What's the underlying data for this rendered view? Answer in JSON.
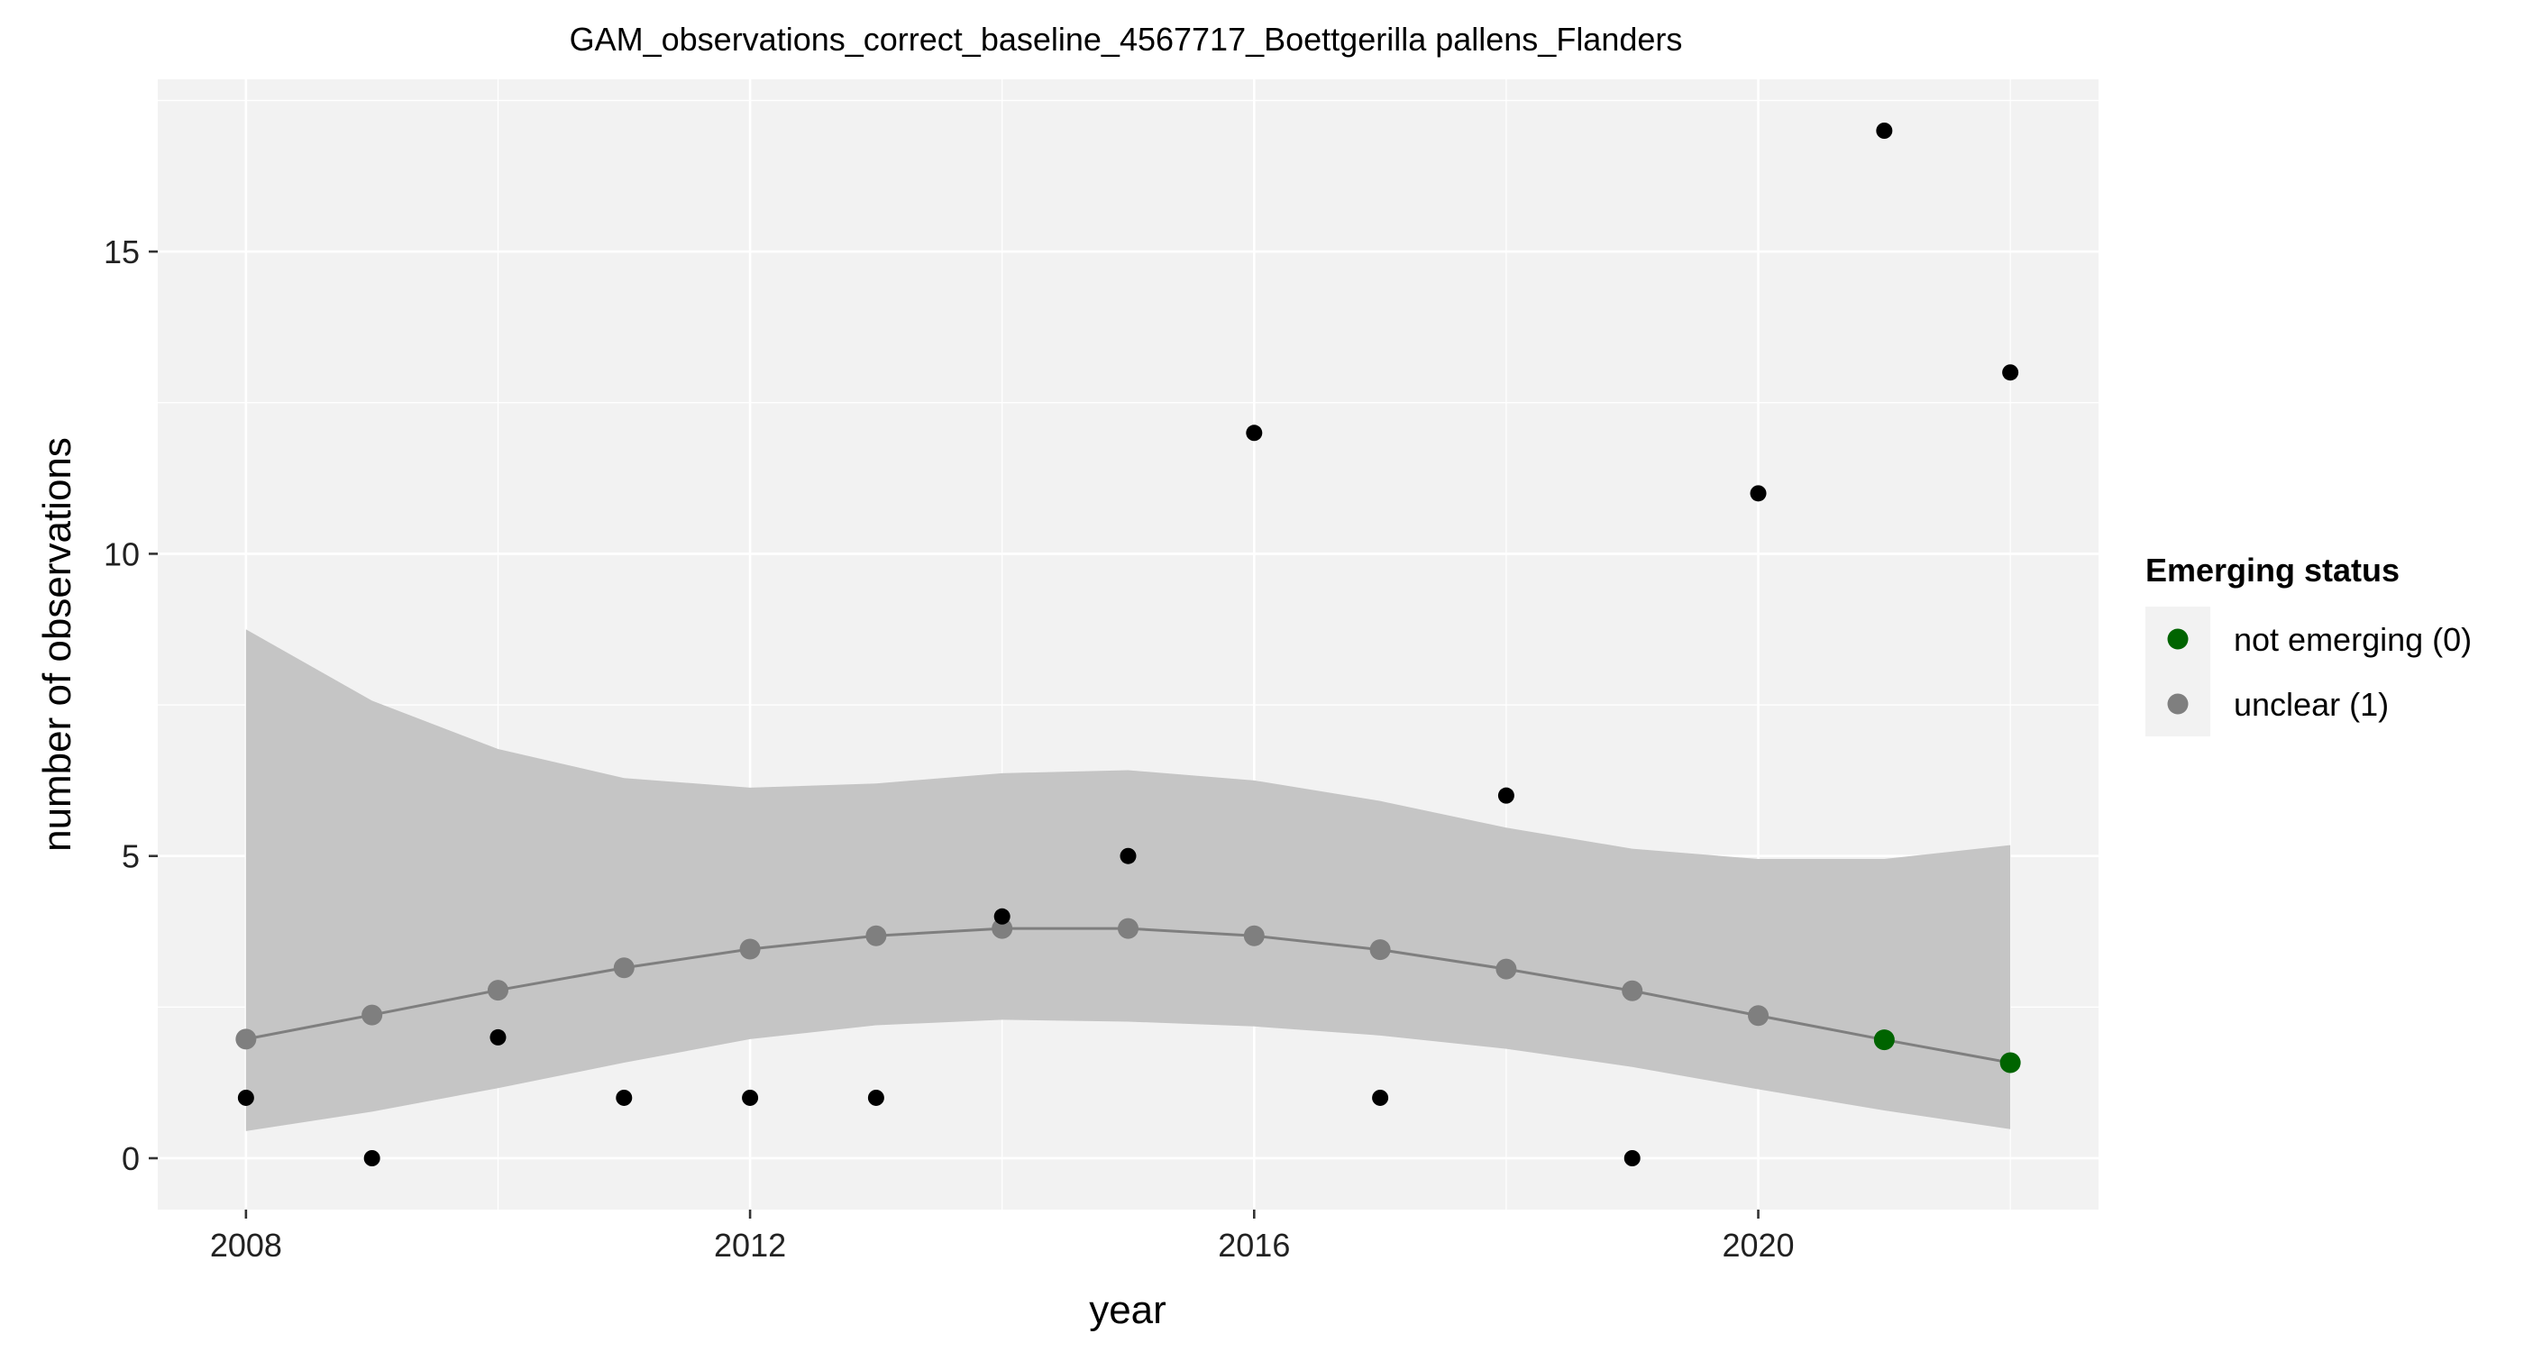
{
  "chart_data": {
    "type": "scatter",
    "title": "GAM_observations_correct_baseline_4567717_Boettgerilla pallens_Flanders",
    "xlabel": "year",
    "ylabel": "number of observations",
    "xlim": [
      2007.3,
      2022.7
    ],
    "ylim": [
      -0.85,
      17.85
    ],
    "x_ticks": [
      2008,
      2012,
      2016,
      2020
    ],
    "y_ticks": [
      0,
      5,
      10,
      15
    ],
    "x_minor_ticks": [
      2010,
      2014,
      2018,
      2022
    ],
    "y_minor_ticks": [
      2.5,
      7.5,
      12.5,
      17.5
    ],
    "grid": true,
    "legend_position": "right",
    "series": [
      {
        "name": "observations",
        "style": "points",
        "color": "#000000",
        "x": [
          2008,
          2009,
          2010,
          2011,
          2012,
          2013,
          2014,
          2015,
          2016,
          2017,
          2018,
          2019,
          2020,
          2021,
          2022
        ],
        "y": [
          1,
          0,
          2,
          1,
          1,
          1,
          4,
          5,
          12,
          1,
          6,
          0,
          11,
          17,
          13
        ]
      },
      {
        "name": "GAM fit",
        "style": "line+points",
        "color": "#7f7f7f",
        "x": [
          2008,
          2009,
          2010,
          2011,
          2012,
          2013,
          2014,
          2015,
          2016,
          2017,
          2018,
          2019,
          2020,
          2021,
          2022
        ],
        "y": [
          1.97,
          2.37,
          2.78,
          3.15,
          3.46,
          3.68,
          3.8,
          3.8,
          3.68,
          3.45,
          3.13,
          2.77,
          2.36,
          1.96,
          1.58
        ],
        "lower": [
          0.45,
          0.77,
          1.16,
          1.58,
          1.97,
          2.2,
          2.29,
          2.26,
          2.18,
          2.03,
          1.81,
          1.51,
          1.14,
          0.79,
          0.48
        ],
        "upper": [
          8.75,
          7.57,
          6.77,
          6.29,
          6.13,
          6.2,
          6.37,
          6.42,
          6.25,
          5.91,
          5.47,
          5.12,
          4.95,
          4.95,
          5.18
        ],
        "status": [
          1,
          1,
          1,
          1,
          1,
          1,
          1,
          1,
          1,
          1,
          1,
          1,
          1,
          0,
          0
        ]
      }
    ],
    "legend": {
      "title": "Emerging status",
      "items": [
        {
          "label": "not emerging (0)",
          "status": 0,
          "color": "#006400"
        },
        {
          "label": "unclear (1)",
          "status": 1,
          "color": "#7f7f7f"
        }
      ]
    },
    "colors": {
      "panel_background": "#f2f2f2",
      "grid": "#ffffff",
      "ribbon": "#c5c5c5",
      "line": "#7f7f7f",
      "observation_points": "#000000"
    }
  }
}
